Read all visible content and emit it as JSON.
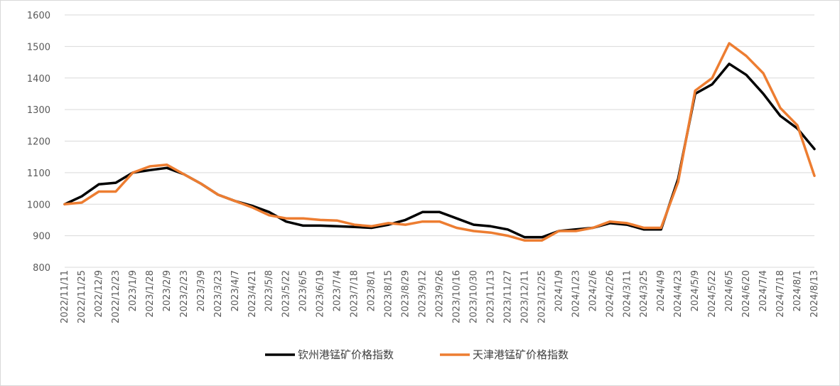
{
  "chart_data": {
    "type": "line",
    "title": "",
    "xlabel": "",
    "ylabel": "",
    "ylim": [
      800,
      1600
    ],
    "yticks": [
      800,
      900,
      1000,
      1100,
      1200,
      1300,
      1400,
      1500,
      1600
    ],
    "grid": "horizontal",
    "legend_position": "bottom",
    "x_tick_labels": [
      "2022/11/11",
      "2022/11/25",
      "2022/12/9",
      "2022/12/23",
      "2023/1/9",
      "2023/1/28",
      "2023/2/9",
      "2023/2/23",
      "2023/3/9",
      "2023/3/23",
      "2023/4/7",
      "2023/4/21",
      "2023/5/8",
      "2023/5/22",
      "2023/6/5",
      "2023/6/19",
      "2023/7/4",
      "2023/7/18",
      "2023/8/1",
      "2023/8/15",
      "2023/8/29",
      "2023/9/12",
      "2023/9/26",
      "2023/10/16",
      "2023/10/30",
      "2023/11/13",
      "2023/11/27",
      "2023/12/11",
      "2023/12/25",
      "2024/1/9",
      "2024/1/23",
      "2024/2/6",
      "2024/2/26",
      "2024/3/11",
      "2024/3/25",
      "2024/4/9",
      "2024/4/23",
      "2024/5/9",
      "2024/5/22",
      "2024/6/5",
      "2024/6/20",
      "2024/7/4",
      "2024/7/18",
      "2024/8/1",
      "2024/8/13"
    ],
    "x": [
      "2022/11/11",
      "2022/11/25",
      "2022/12/9",
      "2022/12/23",
      "2023/1/9",
      "2023/1/28",
      "2023/2/9",
      "2023/2/23",
      "2023/3/9",
      "2023/3/23",
      "2023/4/7",
      "2023/4/21",
      "2023/5/8",
      "2023/5/22",
      "2023/6/5",
      "2023/6/19",
      "2023/7/4",
      "2023/7/18",
      "2023/8/1",
      "2023/8/15",
      "2023/8/29",
      "2023/9/12",
      "2023/9/26",
      "2023/10/16",
      "2023/10/30",
      "2023/11/13",
      "2023/11/27",
      "2023/12/11",
      "2023/12/25",
      "2024/1/9",
      "2024/1/23",
      "2024/2/6",
      "2024/2/26",
      "2024/3/11",
      "2024/3/25",
      "2024/4/9",
      "2024/4/23",
      "2024/5/9",
      "2024/5/22",
      "2024/6/5",
      "2024/6/20",
      "2024/7/4",
      "2024/7/18",
      "2024/8/1",
      "2024/8/13"
    ],
    "series": [
      {
        "name": "钦州港锰矿价格指数",
        "color": "#000000",
        "values": [
          1000,
          1025,
          1063,
          1068,
          1100,
          1108,
          1115,
          1095,
          1065,
          1030,
          1010,
          995,
          975,
          945,
          932,
          932,
          930,
          928,
          925,
          935,
          950,
          975,
          975,
          955,
          935,
          930,
          920,
          895,
          895,
          915,
          920,
          925,
          940,
          935,
          920,
          920,
          1080,
          1350,
          1380,
          1445,
          1410,
          1350,
          1280,
          1240,
          1175
        ]
      },
      {
        "name": "天津港锰矿价格指数",
        "color": "#ED7D31",
        "values": [
          1000,
          1005,
          1040,
          1040,
          1100,
          1120,
          1125,
          1095,
          1065,
          1030,
          1010,
          990,
          965,
          955,
          955,
          950,
          948,
          935,
          930,
          940,
          935,
          945,
          945,
          925,
          915,
          910,
          900,
          885,
          885,
          915,
          915,
          925,
          945,
          940,
          925,
          925,
          1070,
          1360,
          1400,
          1510,
          1470,
          1415,
          1305,
          1250,
          1090
        ]
      }
    ]
  }
}
